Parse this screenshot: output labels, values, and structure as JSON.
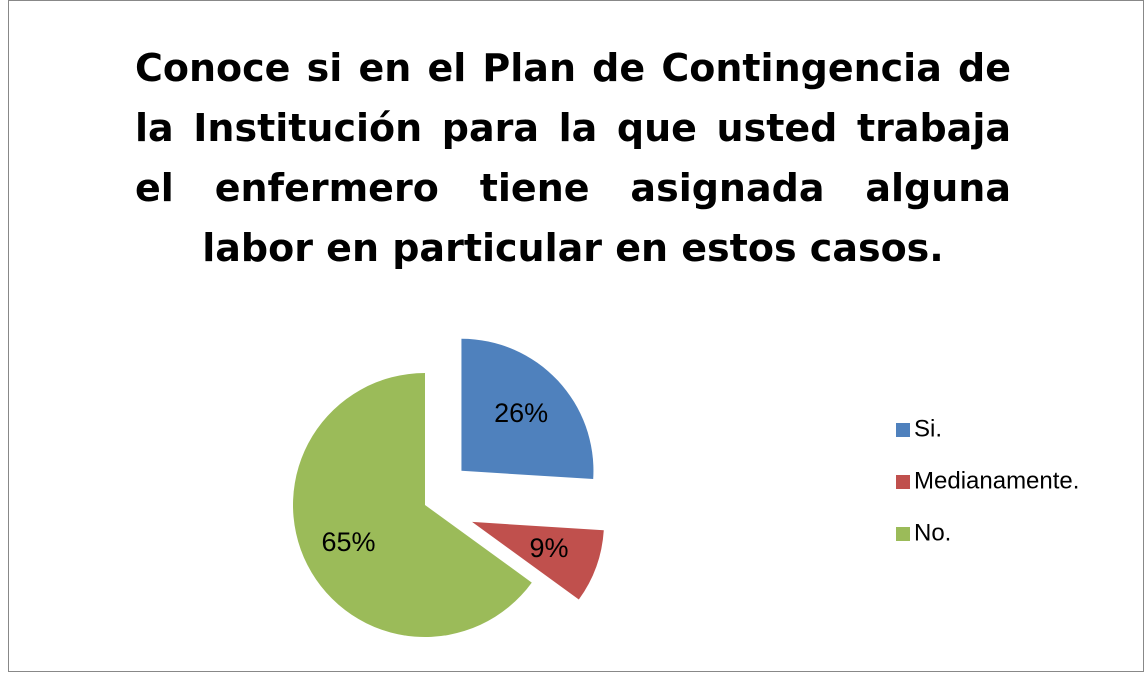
{
  "chart_data": {
    "type": "pie",
    "title": "Conoce si en el Plan de Contingencia de la Institución para la que usted trabaja el enfermero  tiene asignada alguna labor en particular en estos casos.",
    "categories": [
      "Si.",
      "Medianamente.",
      "No."
    ],
    "values": [
      26,
      9,
      65
    ],
    "value_labels": [
      "26%",
      "9%",
      "65%"
    ],
    "colors": [
      "#4f81bd",
      "#c0504d",
      "#9bbb59"
    ],
    "legend": "right"
  }
}
